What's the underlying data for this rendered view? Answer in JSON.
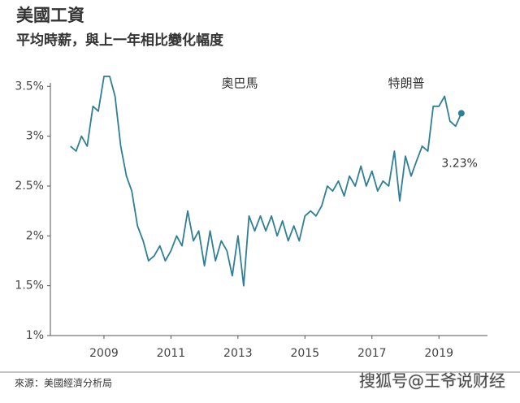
{
  "chart_data": {
    "type": "line",
    "title": "美國工資",
    "subtitle": "平均時薪，與上一年相比變化幅度",
    "annotations": [
      "奧巴馬",
      "特朗普"
    ],
    "end_label": "3.23%",
    "source": "來源：美國經濟分析局",
    "watermark": "搜狐号@王爷说财经",
    "xlim": [
      2007.4,
      2020.45
    ],
    "xticks": [
      2009,
      2011,
      2013,
      2015,
      2017,
      2019
    ],
    "ylim": [
      1,
      3.6
    ],
    "yticks": [
      {
        "value": 1,
        "label": "1%"
      },
      {
        "value": 1.5,
        "label": "1.5%"
      },
      {
        "value": 2,
        "label": "2%"
      },
      {
        "value": 2.5,
        "label": "2.5%"
      },
      {
        "value": 3,
        "label": "3%"
      },
      {
        "value": 3.5,
        "label": "3.5%"
      }
    ],
    "grid": false,
    "color": "#2f7f95",
    "x": [
      2008.0,
      2008.17,
      2008.33,
      2008.5,
      2008.67,
      2008.83,
      2009.0,
      2009.17,
      2009.33,
      2009.5,
      2009.67,
      2009.83,
      2010.0,
      2010.17,
      2010.33,
      2010.5,
      2010.67,
      2010.83,
      2011.0,
      2011.17,
      2011.33,
      2011.5,
      2011.67,
      2011.83,
      2012.0,
      2012.17,
      2012.33,
      2012.5,
      2012.67,
      2012.83,
      2013.0,
      2013.17,
      2013.33,
      2013.5,
      2013.67,
      2013.83,
      2014.0,
      2014.17,
      2014.33,
      2014.5,
      2014.67,
      2014.83,
      2015.0,
      2015.17,
      2015.33,
      2015.5,
      2015.67,
      2015.83,
      2016.0,
      2016.17,
      2016.33,
      2016.5,
      2016.67,
      2016.83,
      2017.0,
      2017.17,
      2017.33,
      2017.5,
      2017.67,
      2017.83,
      2018.0,
      2018.17,
      2018.33,
      2018.5,
      2018.67,
      2018.83,
      2019.0,
      2019.17,
      2019.33,
      2019.5,
      2019.67
    ],
    "values": [
      2.9,
      2.85,
      3.0,
      2.9,
      3.3,
      3.25,
      3.6,
      3.6,
      3.4,
      2.9,
      2.6,
      2.45,
      2.1,
      1.95,
      1.75,
      1.8,
      1.9,
      1.75,
      1.85,
      2.0,
      1.9,
      2.25,
      1.95,
      2.05,
      1.7,
      2.05,
      1.75,
      1.95,
      1.85,
      1.6,
      2.0,
      1.5,
      2.2,
      2.05,
      2.2,
      2.05,
      2.2,
      2.0,
      2.15,
      1.95,
      2.1,
      1.95,
      2.2,
      2.25,
      2.2,
      2.3,
      2.5,
      2.45,
      2.55,
      2.4,
      2.6,
      2.5,
      2.7,
      2.5,
      2.65,
      2.45,
      2.55,
      2.5,
      2.85,
      2.35,
      2.8,
      2.6,
      2.75,
      2.9,
      2.85,
      3.3,
      3.3,
      3.4,
      3.15,
      3.1,
      3.23
    ]
  }
}
